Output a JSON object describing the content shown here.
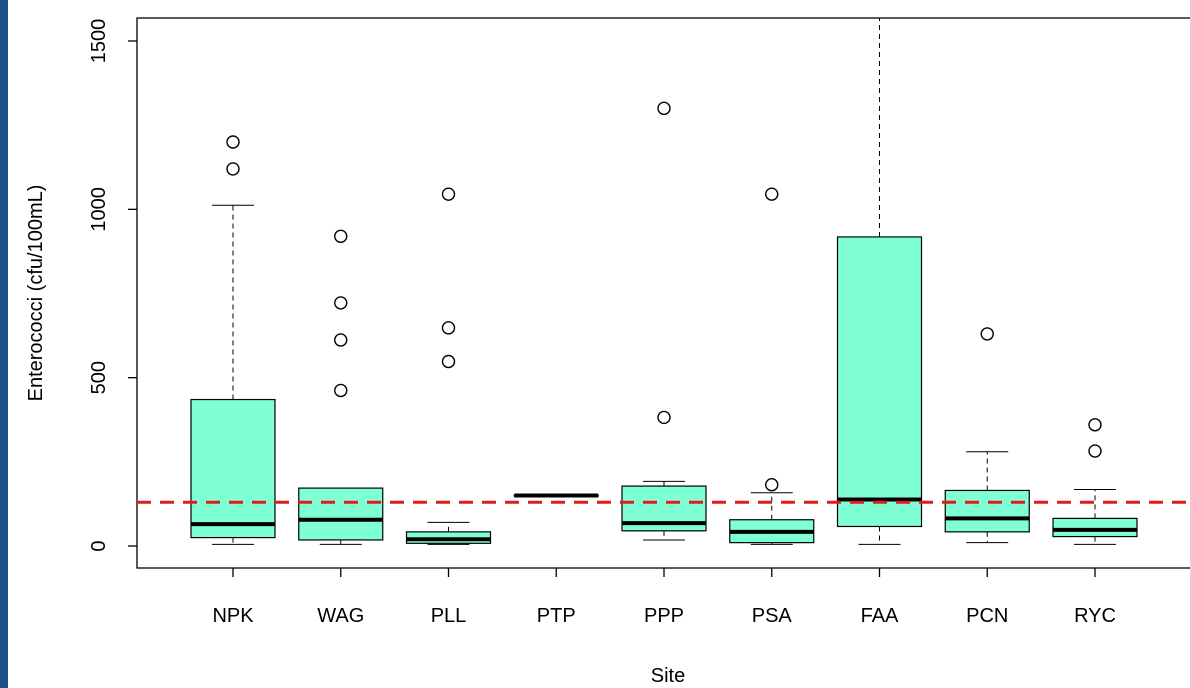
{
  "chart_data": {
    "type": "boxplot",
    "title": "",
    "xlabel": "Site",
    "ylabel": "Enterococci (cfu/100mL)",
    "ylim": [
      -60,
      1590
    ],
    "yticks": [
      0,
      500,
      1000,
      1500
    ],
    "box_fill": "#7fffd4",
    "threshold": {
      "value": 130,
      "color": "#e31a1c",
      "style": "dashed"
    },
    "categories": [
      "NPK",
      "WAG",
      "PLL",
      "PTP",
      "PPP",
      "PSA",
      "FAA",
      "PCN",
      "RYC"
    ],
    "boxes": [
      {
        "site": "NPK",
        "whisker_low": 5,
        "q1": 25,
        "median": 65,
        "q3": 435,
        "whisker_high": 1012,
        "outliers": [
          1120,
          1200
        ]
      },
      {
        "site": "WAG",
        "whisker_low": 5,
        "q1": 18,
        "median": 78,
        "q3": 172,
        "whisker_high": 172,
        "outliers": [
          462,
          612,
          722,
          920
        ]
      },
      {
        "site": "PLL",
        "whisker_low": 5,
        "q1": 8,
        "median": 20,
        "q3": 42,
        "whisker_high": 70,
        "outliers": [
          548,
          648,
          1045
        ]
      },
      {
        "site": "PTP",
        "whisker_low": 150,
        "q1": 150,
        "median": 150,
        "q3": 150,
        "whisker_high": 150,
        "outliers": []
      },
      {
        "site": "PPP",
        "whisker_low": 18,
        "q1": 45,
        "median": 68,
        "q3": 178,
        "whisker_high": 192,
        "outliers": [
          382,
          1300
        ]
      },
      {
        "site": "PSA",
        "whisker_low": 5,
        "q1": 10,
        "median": 42,
        "q3": 78,
        "whisker_high": 158,
        "outliers": [
          182,
          1045
        ]
      },
      {
        "site": "FAA",
        "whisker_low": 5,
        "q1": 58,
        "median": 138,
        "q3": 918,
        "whisker_high": 1590,
        "outliers": []
      },
      {
        "site": "PCN",
        "whisker_low": 10,
        "q1": 42,
        "median": 82,
        "q3": 165,
        "whisker_high": 280,
        "outliers": [
          630
        ]
      },
      {
        "site": "RYC",
        "whisker_low": 5,
        "q1": 28,
        "median": 48,
        "q3": 82,
        "whisker_high": 168,
        "outliers": [
          282,
          360
        ]
      }
    ]
  }
}
